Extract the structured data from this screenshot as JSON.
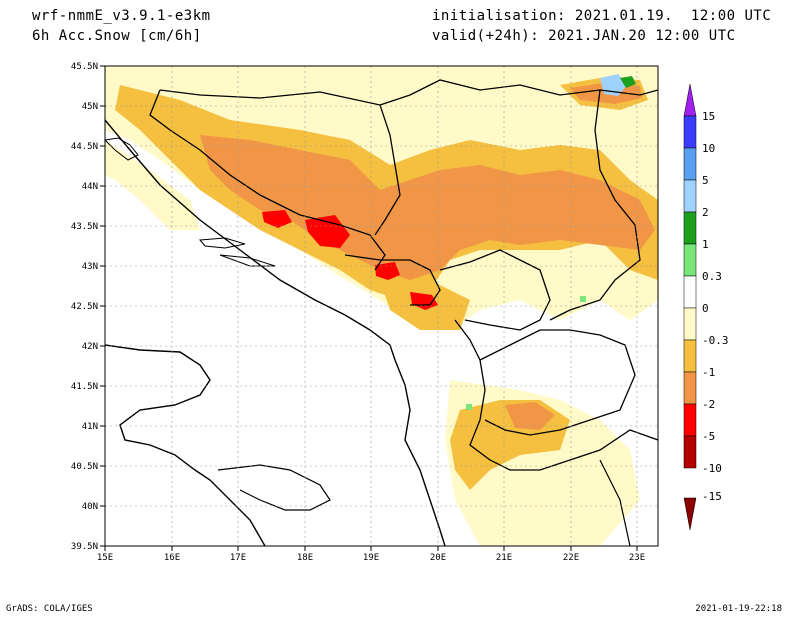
{
  "header": {
    "model": "wrf-nmmE_v3.9.1-e3km",
    "field": "6h Acc.Snow [cm/6h]",
    "init": "initialisation: 2021.01.19.  12:00 UTC",
    "valid": "valid(+24h): 2021.JAN.20 12:00 UTC"
  },
  "map": {
    "lat_ticks": [
      "45.5N",
      "45N",
      "44.5N",
      "44N",
      "43.5N",
      "43N",
      "42.5N",
      "42N",
      "41.5N",
      "41N",
      "40.5N",
      "40N",
      "39.5N"
    ],
    "lon_ticks": [
      "15E",
      "16E",
      "17E",
      "18E",
      "19E",
      "20E",
      "21E",
      "22E",
      "23E"
    ]
  },
  "colorbar": {
    "labels": [
      "15",
      "10",
      "5",
      "2",
      "1",
      "0.3",
      "0",
      "-0.3",
      "-1",
      "-2",
      "-5",
      "-10",
      "-15"
    ],
    "colors": [
      "#a020f0",
      "#3c3cff",
      "#5aa0f0",
      "#a0d2ff",
      "#1ea01e",
      "#78e678",
      "#ffffff",
      "#fffac8",
      "#f5c040",
      "#f09646",
      "#ff0000",
      "#b40000"
    ]
  },
  "footer": {
    "left": "GrADS: COLA/IGES",
    "right": "2021-01-19-22:18"
  }
}
